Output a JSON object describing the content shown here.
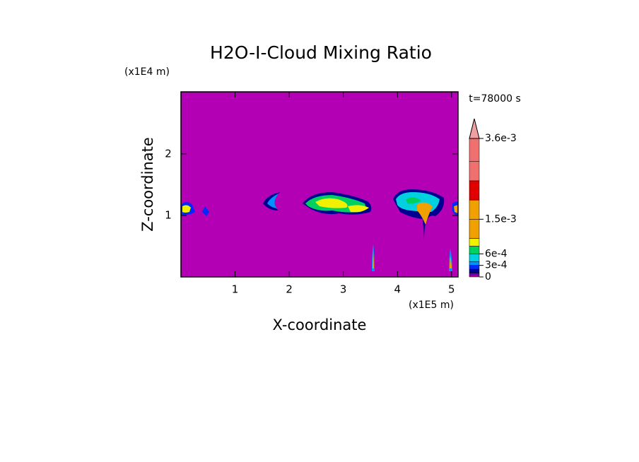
{
  "chart_data": {
    "type": "contour",
    "title": "H2O-I-Cloud Mixing Ratio",
    "x_label": "X-coordinate",
    "y_label": "Z-coordinate",
    "x_unit": "(x1E5 m)",
    "y_unit": "(x1E4 m)",
    "annotation": "t=78000 s",
    "xlim": [
      0,
      5.12
    ],
    "xticks": [
      1,
      2,
      3,
      4,
      5
    ],
    "ylim": [
      0,
      3.01
    ],
    "yticks": [
      1,
      2
    ],
    "colorbar": {
      "levels": [
        0,
        5e-05,
        0.0001,
        0.0002,
        0.0003,
        0.0004,
        0.0006,
        0.0008,
        0.001,
        0.0015,
        0.002,
        0.0025,
        0.003,
        0.0036
      ],
      "colors": [
        "#b400b4",
        "#7800b4",
        "#000090",
        "#0028ff",
        "#0090ff",
        "#00d0e0",
        "#00d060",
        "#f0f000",
        "#f0a000",
        "#f0a000",
        "#e00000",
        "#f07070",
        "#f07070"
      ],
      "extend_color": "#f0a0a0",
      "ticks": [
        0,
        {
          "value": 0.0003,
          "label": "3e-4"
        },
        {
          "value": 0.0006,
          "label": "6e-4"
        },
        {
          "value": 0.0015,
          "label": "1.5e-3"
        },
        {
          "value": 0.0036,
          "label": "3.6e-3"
        }
      ]
    }
  }
}
